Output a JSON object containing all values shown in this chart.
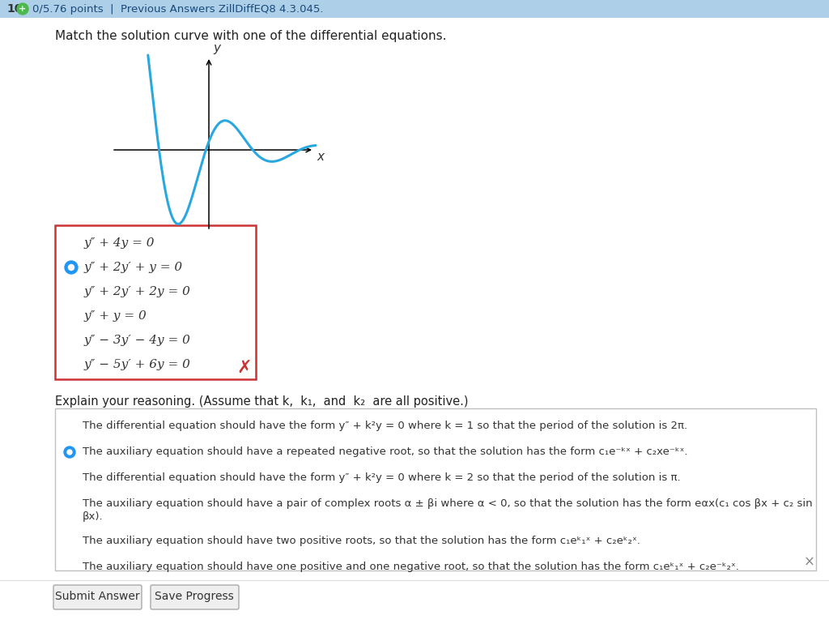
{
  "header_bg": "#aecfe8",
  "page_bg": "#ffffff",
  "question_text": "Match the solution curve with one of the differential equations.",
  "curve_color": "#29a8e0",
  "curve_linewidth": 2.2,
  "options": [
    "y″ + 4y = 0",
    "y″ + 2y′ + y = 0",
    "y″ + 2y′ + 2y = 0",
    "y″ + y = 0",
    "y″ − 3y′ − 4y = 0",
    "y″ − 5y′ + 6y = 0"
  ],
  "selected_option": 1,
  "selected_color": "#2196F3",
  "box_border": "#cc3333",
  "wrong_x_color": "#cc3333",
  "reasoning_title": "Explain your reasoning. (Assume that k,  k₁,  and  k₂  are all positive.)",
  "r_line1": "The differential equation should have the form y″ + k²y = 0 where k = 1 so that the period of the solution is 2π.",
  "r_line2": "The auxiliary equation should have a repeated negative root, so that the solution has the form c₁e⁻ᵏˣ + c₂xe⁻ᵏˣ.",
  "r_line3": "The differential equation should have the form y″ + k²y = 0 where k = 2 so that the period of the solution is π.",
  "r_line4a": "The auxiliary equation should have a pair of complex roots α ± βi where α < 0, so that the solution has the form eαx(c₁ cos βx + c₂ sin",
  "r_line4b": "βx).",
  "r_line5": "The auxiliary equation should have two positive roots, so that the solution has the form c₁eᵏ₁ˣ + c₂eᵏ₂ˣ.",
  "r_line6": "The auxiliary equation should have one positive and one negative root, so that the solution has the form c₁eᵏ₁ˣ + c₂e⁻ᵏ₂ˣ.",
  "reasoning_selected": 1,
  "button_labels": [
    "Submit Answer",
    "Save Progress"
  ]
}
